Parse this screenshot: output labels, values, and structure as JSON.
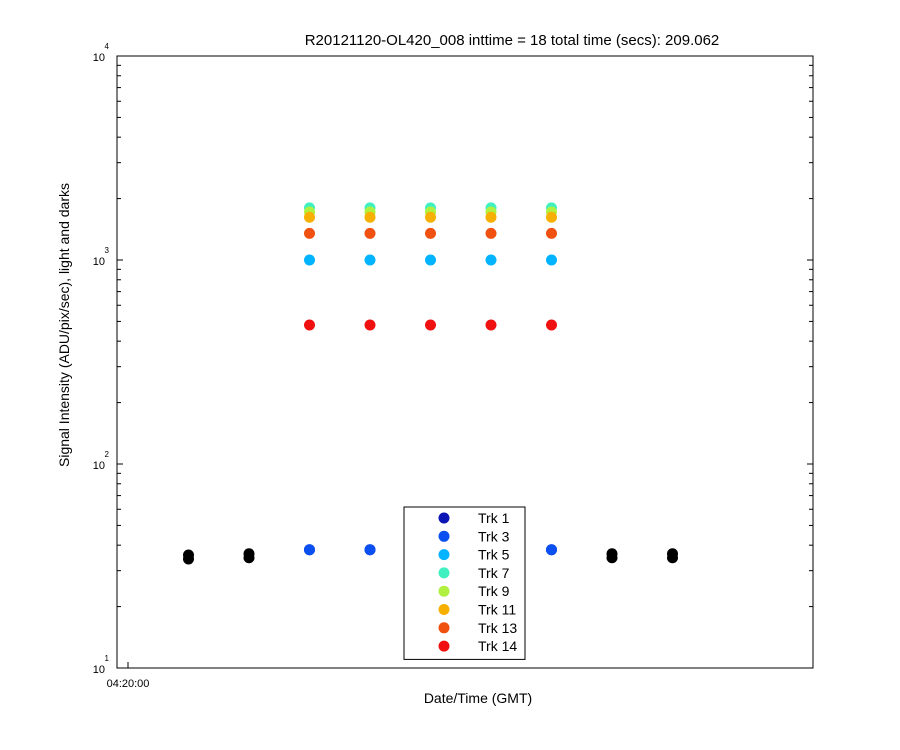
{
  "chart_data": {
    "type": "scatter",
    "title": "R20121120-OL420_008 inttime = 18 total time (secs): 209.062",
    "xlabel": "Date/Time (GMT)",
    "ylabel": "Signal Intensity (ADU/pix/sec), light and darks",
    "yscale": "log",
    "ylim": [
      10,
      10000
    ],
    "yticks": [
      {
        "base": "10",
        "exp": "1",
        "value": 10
      },
      {
        "base": "10",
        "exp": "2",
        "value": 100
      },
      {
        "base": "10",
        "exp": "3",
        "value": 1000
      },
      {
        "base": "10",
        "exp": "4",
        "value": 10000
      }
    ],
    "xticks": [
      {
        "label": "04:20:00",
        "value": "04:20:00"
      }
    ],
    "x": [
      "04:20:05",
      "04:20:10",
      "04:20:15",
      "04:20:20",
      "04:20:25",
      "04:20:30",
      "04:20:35",
      "04:20:40",
      "04:20:45"
    ],
    "series": [
      {
        "name": "Trk 1",
        "color": "#0b14b4",
        "values": [
          null,
          null,
          38,
          38,
          null,
          null,
          38,
          null,
          null
        ]
      },
      {
        "name": "Trk 3",
        "color": "#0a50f0",
        "values": [
          null,
          null,
          38,
          38,
          null,
          null,
          38,
          null,
          null
        ]
      },
      {
        "name": "Trk 5",
        "color": "#00b4ff",
        "values": [
          null,
          null,
          1000,
          1000,
          1000,
          1000,
          1000,
          null,
          null
        ]
      },
      {
        "name": "Trk 7",
        "color": "#40f0c0",
        "values": [
          null,
          null,
          1800,
          1800,
          1800,
          1800,
          1800,
          null,
          null
        ]
      },
      {
        "name": "Trk 9",
        "color": "#b0f040",
        "values": [
          null,
          null,
          1720,
          1720,
          1720,
          1720,
          1720,
          null,
          null
        ]
      },
      {
        "name": "Trk 11",
        "color": "#f8b000",
        "values": [
          null,
          null,
          1620,
          1620,
          1620,
          1620,
          1620,
          null,
          null
        ]
      },
      {
        "name": "Trk 13",
        "color": "#f05010",
        "values": [
          null,
          null,
          1350,
          1350,
          1350,
          1350,
          1350,
          null,
          null
        ]
      },
      {
        "name": "Trk 14",
        "color": "#f01010",
        "values": [
          null,
          null,
          480,
          480,
          480,
          480,
          480,
          null,
          null
        ]
      }
    ],
    "darks": {
      "color": "#000000",
      "x": [
        "04:20:05",
        "04:20:10",
        "04:20:40",
        "04:20:45"
      ],
      "values": [
        35,
        35.5,
        35.5,
        35.5
      ]
    },
    "legend": {
      "placement": "bottom-center"
    },
    "grid": false
  }
}
